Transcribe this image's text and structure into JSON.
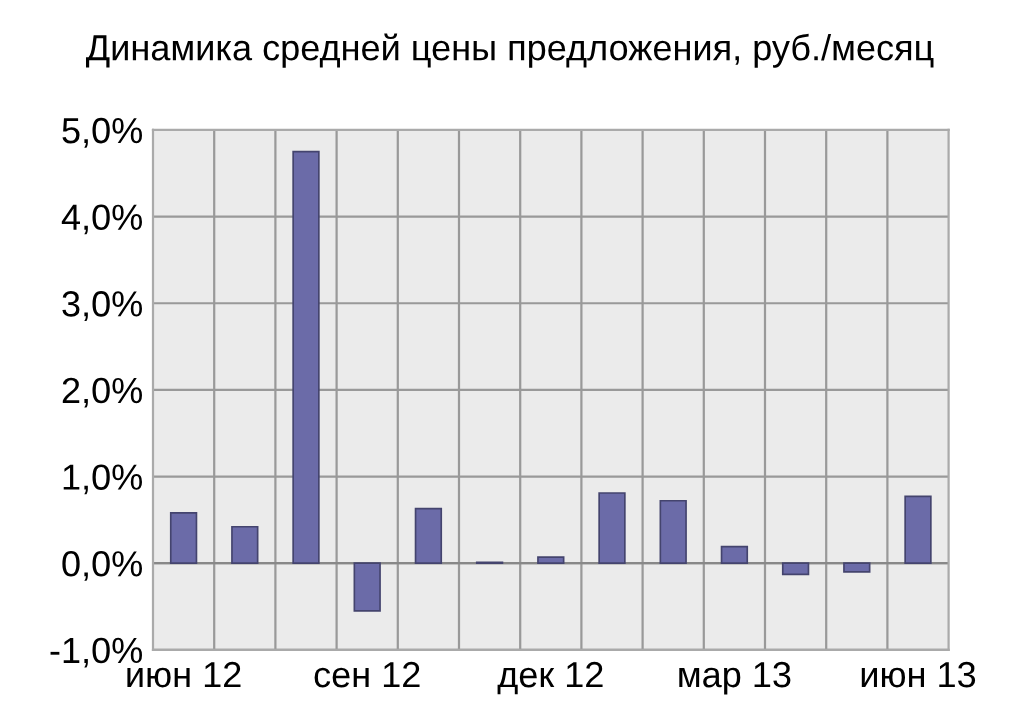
{
  "chart_data": {
    "type": "bar",
    "title": "Динамика средней цены предложения, руб./месяц",
    "categories": [
      "июн 12",
      null,
      null,
      "сен 12",
      null,
      null,
      "дек 12",
      null,
      null,
      "мар 13",
      null,
      null,
      "июн 13"
    ],
    "values": [
      0.58,
      0.42,
      4.75,
      -0.55,
      0.63,
      0.01,
      0.07,
      0.81,
      0.72,
      0.19,
      -0.13,
      -0.1,
      0.77
    ],
    "color": "#6b6ba8",
    "ylim": [
      -1,
      5
    ],
    "yticks": [
      {
        "value": -1,
        "label": "-1,0%"
      },
      {
        "value": 0,
        "label": "0,0%"
      },
      {
        "value": 1,
        "label": "1,0%"
      },
      {
        "value": 2,
        "label": "2,0%"
      },
      {
        "value": 3,
        "label": "3,0%"
      },
      {
        "value": 4,
        "label": "4,0%"
      },
      {
        "value": 5,
        "label": "5,0%"
      }
    ],
    "grid": true
  }
}
